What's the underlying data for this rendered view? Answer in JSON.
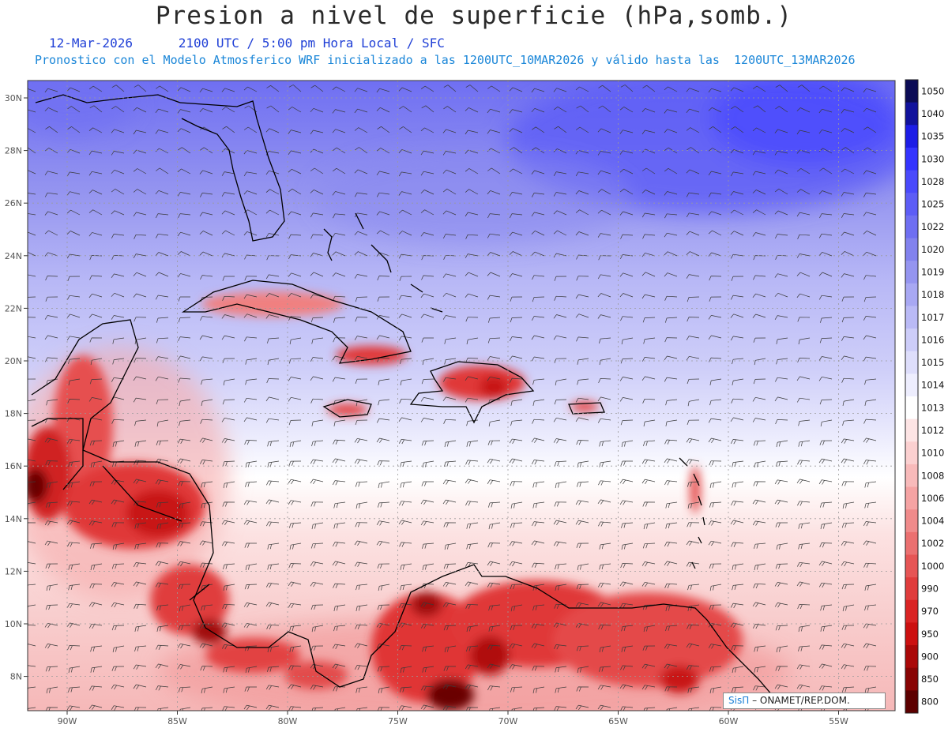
{
  "header": {
    "title": "Presion a nivel de superficie (hPa,somb.)",
    "date": "12-Mar-2026",
    "valid_time": "2100 UTC / 5:00 pm Hora Local / SFC",
    "model_line": "Pronostico con el Modelo Atmosferico WRF inicializado a las 1200UTC_10MAR2026 y válido hasta las  1200UTC_13MAR2026"
  },
  "axes": {
    "lat_labels": [
      "30N",
      "28N",
      "26N",
      "24N",
      "22N",
      "20N",
      "18N",
      "16N",
      "14N",
      "12N",
      "10N",
      "8N"
    ],
    "lon_labels": [
      "90W",
      "85W",
      "80W",
      "75W",
      "70W",
      "65W",
      "60W",
      "55W"
    ]
  },
  "colorbar": {
    "levels": [
      "1050",
      "1040",
      "1035",
      "1030",
      "1028",
      "1025",
      "1022",
      "1020",
      "1019",
      "1018",
      "1017",
      "1016",
      "1015",
      "1014",
      "1013",
      "1012",
      "1010",
      "1008",
      "1006",
      "1004",
      "1002",
      "1000",
      "990",
      "970",
      "950",
      "900",
      "850",
      "800"
    ],
    "colors": [
      "#0b0b55",
      "#11129c",
      "#1d1de6",
      "#3434ff",
      "#4a4afc",
      "#5d5df6",
      "#6f6ff2",
      "#8282ee",
      "#9595f0",
      "#a8a8f3",
      "#babaf6",
      "#cdcdf9",
      "#dedefb",
      "#eeeefe",
      "#ffffff",
      "#fde4e4",
      "#fbd0d0",
      "#f8baba",
      "#f5a3a3",
      "#f08b8b",
      "#eb7070",
      "#e65555",
      "#e03c3c",
      "#da2424",
      "#cc1010",
      "#aa0808",
      "#880404",
      "#5c0000"
    ]
  },
  "credit": {
    "brand": "SisΠ",
    "org": "– ONAMET/REP.DOM."
  }
}
